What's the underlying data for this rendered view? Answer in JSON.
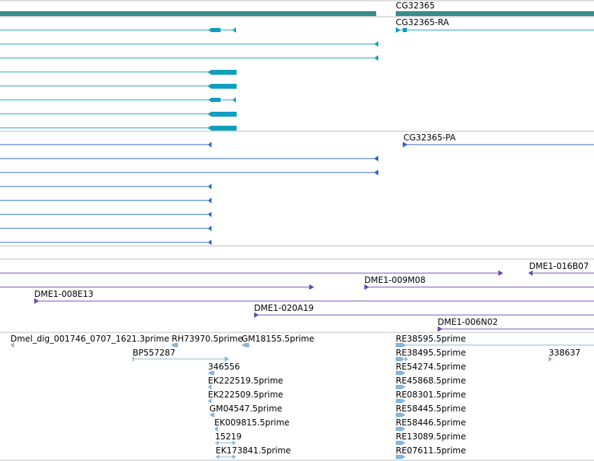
{
  "colors": {
    "gene": "#3a8c8c",
    "transcript_ra": "#0f9fbf",
    "transcript_pa": "#2b63c4",
    "clone": "#6a4aa8",
    "est": "#86b6da",
    "divider": "#aaaaaa"
  },
  "gene": {
    "label": "CG32365"
  },
  "transcripts": {
    "ra_label": "CG32365-RA",
    "pa_label": "CG32365-PA"
  },
  "clones": {
    "c1": "DME1-016B07",
    "c2": "DME1-009M08",
    "c3": "DME1-008E13",
    "c4": "DME1-020A19",
    "c5": "DME1-006N02"
  },
  "ests": {
    "e1": "Dmel_dig_001746_0707_1621.3prime",
    "e2": "RH73970.5prime",
    "e3": "GM18155.5prime",
    "e4": "BP557287",
    "e5": "346556",
    "e6": "EK222519.5prime",
    "e7": "EK222509.5prime",
    "e8": "GM04547.5prime",
    "e9": "EK009815.5prime",
    "e10": "15219",
    "e11": "EK173841.5prime",
    "e12": "RE38595.5prime",
    "e13": "RE38495.5prime",
    "e14": "RE54274.5prime",
    "e15": "RE45868.5prime",
    "e16": "RE08301.5prime",
    "e17": "RE58445.5prime",
    "e18": "RE58446.5prime",
    "e19": "RE13089.5prime",
    "e20": "RE07611.5prime",
    "e21": "338637"
  }
}
